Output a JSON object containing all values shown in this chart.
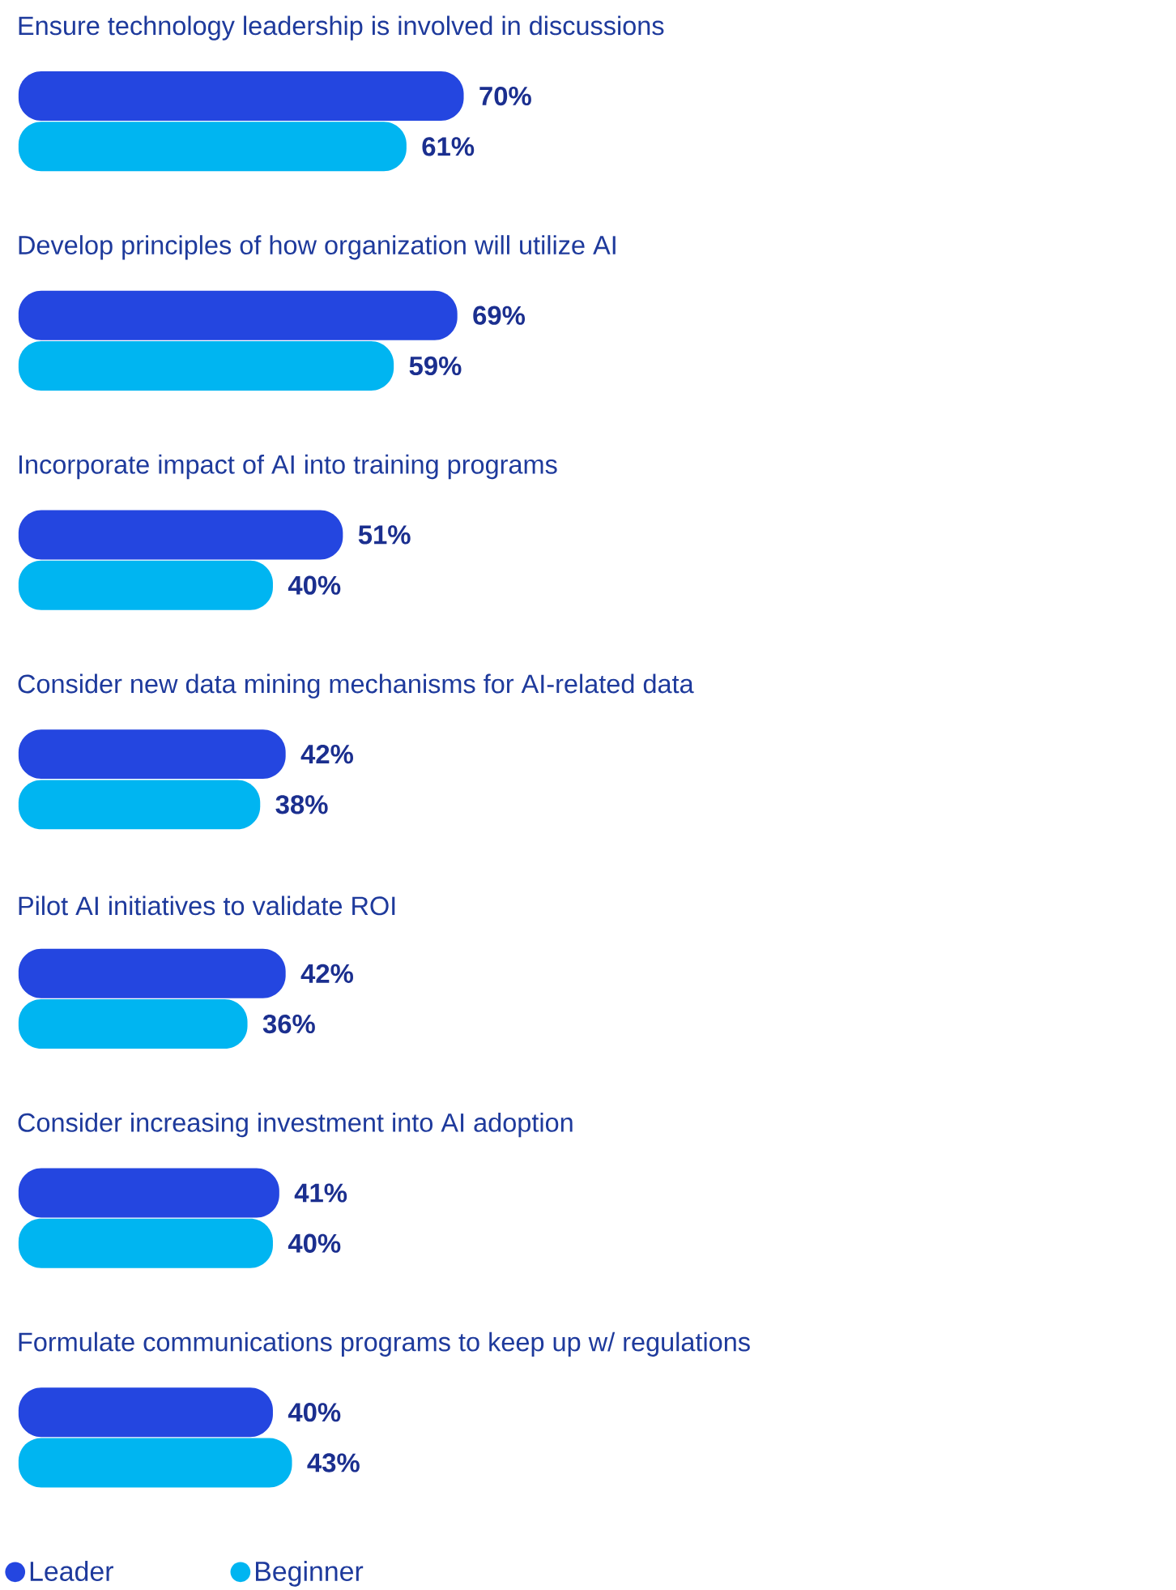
{
  "chart_data": {
    "type": "bar",
    "orientation": "horizontal",
    "categories": [
      "Ensure technology leadership is involved in discussions",
      "Develop principles of how organization will utilize AI",
      "Incorporate impact of AI into training programs",
      "Consider new data mining mechanisms for AI-related data",
      "Pilot AI initiatives to validate ROI",
      "Consider increasing investment into AI adoption",
      "Formulate communications programs to keep up w/ regulations"
    ],
    "series": [
      {
        "name": "Leader",
        "color": "#2446e0",
        "values": [
          70,
          69,
          51,
          42,
          42,
          41,
          40
        ],
        "value_labels": [
          "70%",
          "69%",
          "51%",
          "42%",
          "42%",
          "41%",
          "40%"
        ]
      },
      {
        "name": "Beginner",
        "color": "#00b5f1",
        "values": [
          61,
          59,
          40,
          38,
          36,
          40,
          43
        ],
        "value_labels": [
          "61%",
          "59%",
          "40%",
          "38%",
          "36%",
          "40%",
          "43%"
        ]
      }
    ],
    "legend": "bottom left",
    "tick_labels": false
  }
}
